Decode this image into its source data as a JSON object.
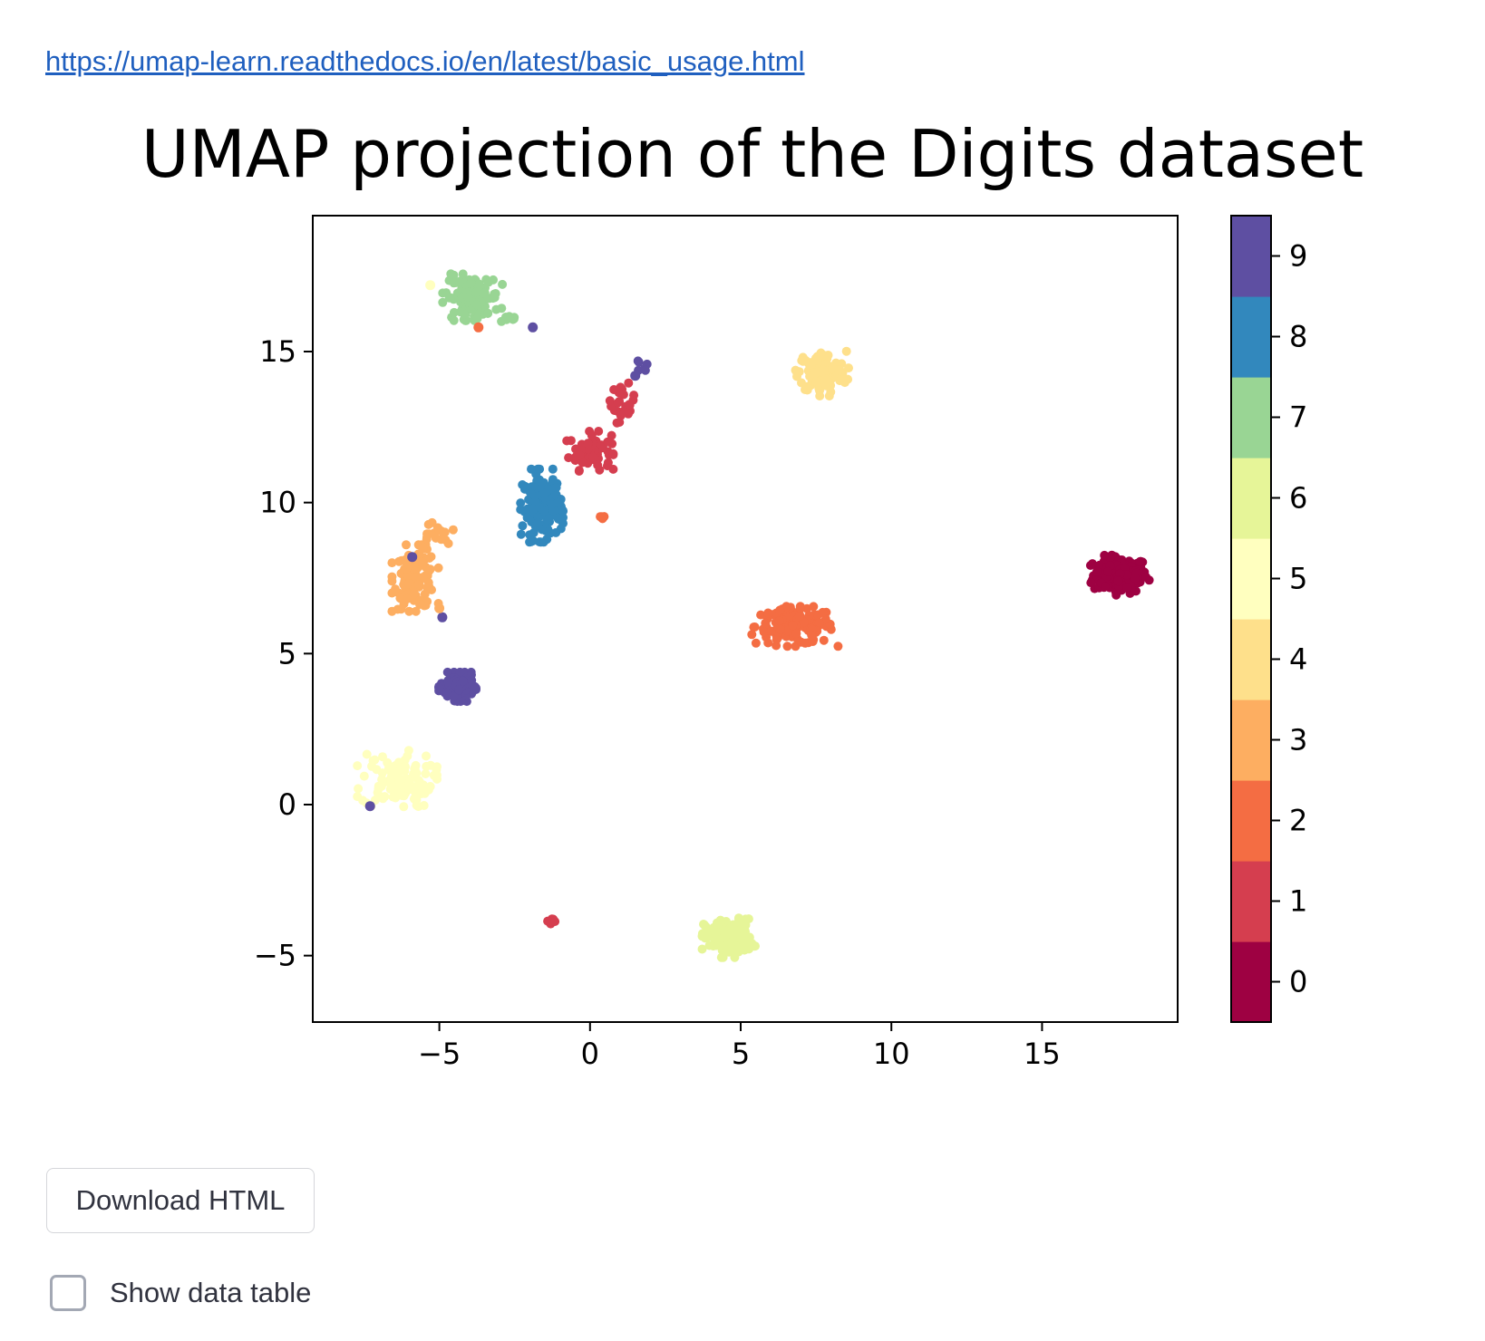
{
  "link": {
    "text": "https://umap-learn.readthedocs.io/en/latest/basic_usage.html"
  },
  "chart_data": {
    "type": "scatter",
    "title": "UMAP projection of the Digits dataset",
    "xlabel": "",
    "ylabel": "",
    "xlim": [
      -9.2,
      19.5
    ],
    "ylim": [
      -7.2,
      19.5
    ],
    "xticks": [
      -5,
      0,
      5,
      10,
      15
    ],
    "yticks": [
      -5,
      0,
      5,
      10,
      15
    ],
    "xtick_labels": [
      "−5",
      "0",
      "5",
      "10",
      "15"
    ],
    "ytick_labels": [
      "−5",
      "0",
      "5",
      "10",
      "15"
    ],
    "grid": false,
    "colormap": "Spectral",
    "colorbar": {
      "labels": [
        "0",
        "1",
        "2",
        "3",
        "4",
        "5",
        "6",
        "7",
        "8",
        "9"
      ],
      "colors": [
        "#9e0142",
        "#d53e4f",
        "#f46d43",
        "#fdae61",
        "#fee08b",
        "#ffffbf",
        "#e6f598",
        "#99d594",
        "#3288bd",
        "#5e4fa2"
      ]
    },
    "clusters": [
      {
        "label": 0,
        "center": [
          17.6,
          7.6
        ],
        "spread": [
          0.45,
          0.3
        ],
        "n": 170
      },
      {
        "label": 1,
        "center": [
          0.0,
          11.7
        ],
        "spread": [
          0.35,
          0.3
        ],
        "n": 70
      },
      {
        "label": 1,
        "center": [
          1.1,
          13.3
        ],
        "spread": [
          0.2,
          0.3
        ],
        "n": 25
      },
      {
        "label": 1,
        "center": [
          -1.3,
          -3.85
        ],
        "spread": [
          0.1,
          0.08
        ],
        "n": 8
      },
      {
        "label": 2,
        "center": [
          6.8,
          5.9
        ],
        "spread": [
          0.65,
          0.3
        ],
        "n": 150
      },
      {
        "label": 2,
        "center": [
          0.4,
          9.55
        ],
        "spread": [
          0.06,
          0.05
        ],
        "n": 4
      },
      {
        "label": 3,
        "center": [
          -5.8,
          7.5
        ],
        "spread": [
          0.35,
          0.5
        ],
        "n": 110
      },
      {
        "label": 3,
        "center": [
          -5.2,
          8.9
        ],
        "spread": [
          0.3,
          0.25
        ],
        "n": 20
      },
      {
        "label": 4,
        "center": [
          7.7,
          14.3
        ],
        "spread": [
          0.4,
          0.35
        ],
        "n": 130
      },
      {
        "label": 5,
        "center": [
          -6.4,
          0.8
        ],
        "spread": [
          0.6,
          0.45
        ],
        "n": 110
      },
      {
        "label": 6,
        "center": [
          4.6,
          -4.4
        ],
        "spread": [
          0.4,
          0.3
        ],
        "n": 150
      },
      {
        "label": 7,
        "center": [
          -3.9,
          16.8
        ],
        "spread": [
          0.45,
          0.35
        ],
        "n": 120
      },
      {
        "label": 7,
        "center": [
          -2.5,
          16.1
        ],
        "spread": [
          0.2,
          0.06
        ],
        "n": 8
      },
      {
        "label": 8,
        "center": [
          -1.6,
          9.9
        ],
        "spread": [
          0.32,
          0.55
        ],
        "n": 150
      },
      {
        "label": 9,
        "center": [
          -4.4,
          3.9
        ],
        "spread": [
          0.28,
          0.22
        ],
        "n": 140
      },
      {
        "label": 9,
        "center": [
          1.7,
          14.5
        ],
        "spread": [
          0.1,
          0.1
        ],
        "n": 6
      }
    ],
    "outliers": [
      {
        "label": 9,
        "x": -1.9,
        "y": 15.8
      },
      {
        "label": 9,
        "x": -5.9,
        "y": 8.2
      },
      {
        "label": 9,
        "x": -4.9,
        "y": 6.2
      },
      {
        "label": 9,
        "x": -7.3,
        "y": -0.05
      },
      {
        "label": 2,
        "x": -3.7,
        "y": 15.8
      },
      {
        "label": 3,
        "x": -5.0,
        "y": 6.5
      },
      {
        "label": 5,
        "x": -5.3,
        "y": 17.2
      },
      {
        "label": 9,
        "x": 1.5,
        "y": 14.2
      }
    ]
  },
  "download_button": {
    "label": "Download HTML"
  },
  "show_table": {
    "label": "Show data table",
    "checked": false
  }
}
